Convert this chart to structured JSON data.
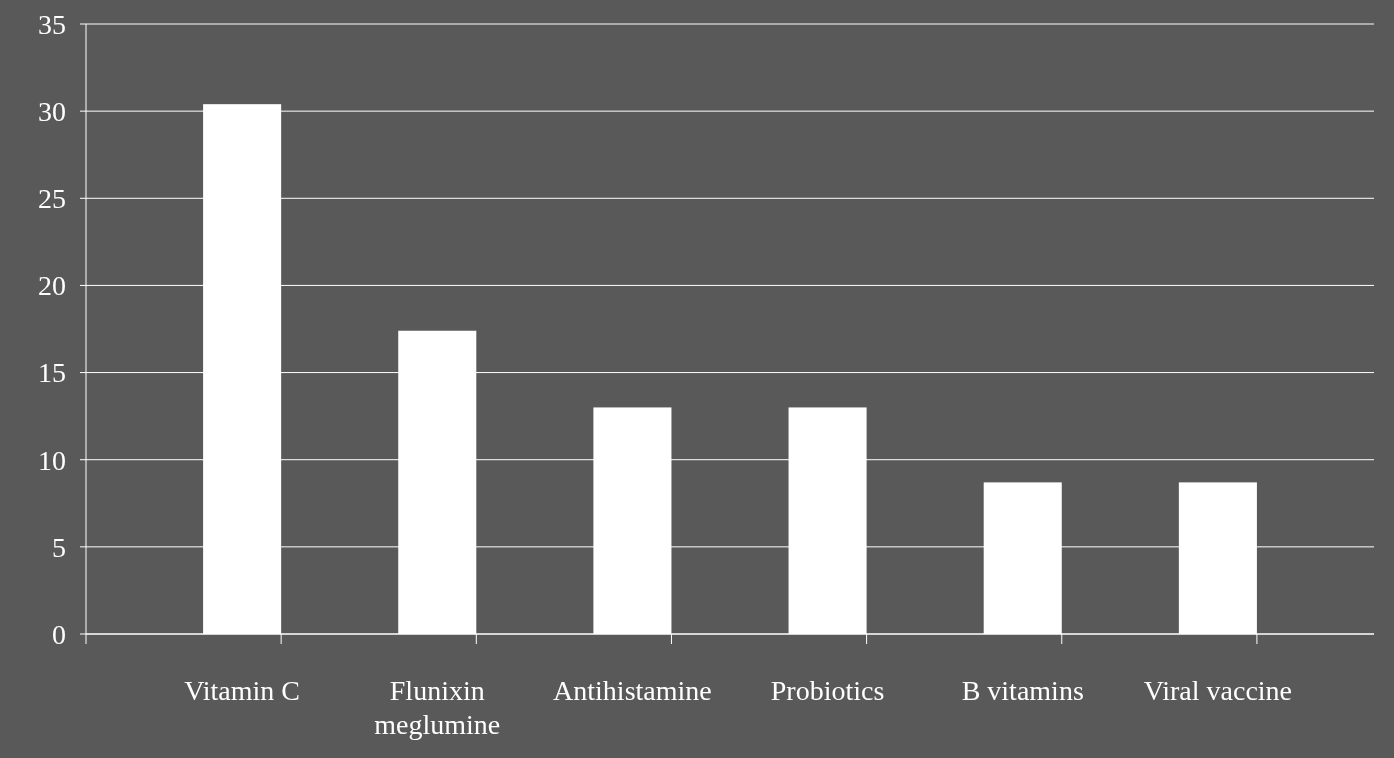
{
  "chart_data": {
    "type": "bar",
    "categories": [
      "Vitamin C",
      "Flunixin meglumine",
      "Antihistamine",
      "Probiotics",
      "B vitamins",
      "Viral vaccine"
    ],
    "values": [
      30.4,
      17.4,
      13.0,
      13.0,
      8.7,
      8.7
    ],
    "color": "#ffffff",
    "ylim": [
      0,
      35
    ],
    "yticks": [
      0,
      5,
      10,
      15,
      20,
      25,
      30,
      35
    ],
    "grid": "y"
  }
}
